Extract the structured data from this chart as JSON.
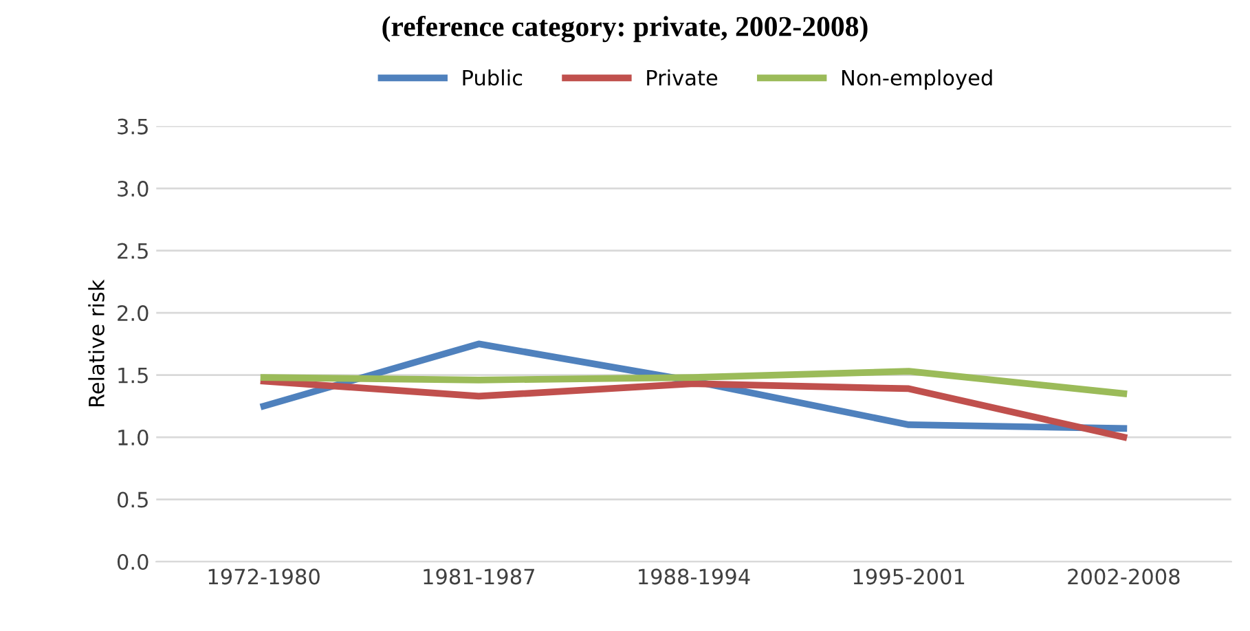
{
  "chart_data": {
    "type": "line",
    "title": "(reference category: private, 2002-2008)",
    "ylabel": "Relative risk",
    "categories": [
      "1972-1980",
      "1981-1987",
      "1988-1994",
      "1995-2001",
      "2002-2008"
    ],
    "series": [
      {
        "name": "Public",
        "color": "#4f81bd",
        "values": [
          1.25,
          1.75,
          1.45,
          1.1,
          1.07
        ]
      },
      {
        "name": "Private",
        "color": "#c0504d",
        "values": [
          1.45,
          1.33,
          1.43,
          1.39,
          1.0
        ]
      },
      {
        "name": "Non-employed",
        "color": "#9bbb59",
        "values": [
          1.48,
          1.46,
          1.48,
          1.53,
          1.35
        ]
      }
    ],
    "ylim": [
      0,
      3.5
    ],
    "yticks": [
      {
        "value": 0,
        "label": "0.0"
      },
      {
        "value": 0.5,
        "label": "0.5"
      },
      {
        "value": 1,
        "label": "1.0"
      },
      {
        "value": 1.5,
        "label": "1.5"
      },
      {
        "value": 2,
        "label": "2.0"
      },
      {
        "value": 2.5,
        "label": "2.5"
      },
      {
        "value": 3,
        "label": "3.0"
      },
      {
        "value": 3.5,
        "label": "3.5"
      }
    ],
    "grid": "y",
    "legend": "top",
    "marker": "none",
    "line_style": "solid"
  }
}
